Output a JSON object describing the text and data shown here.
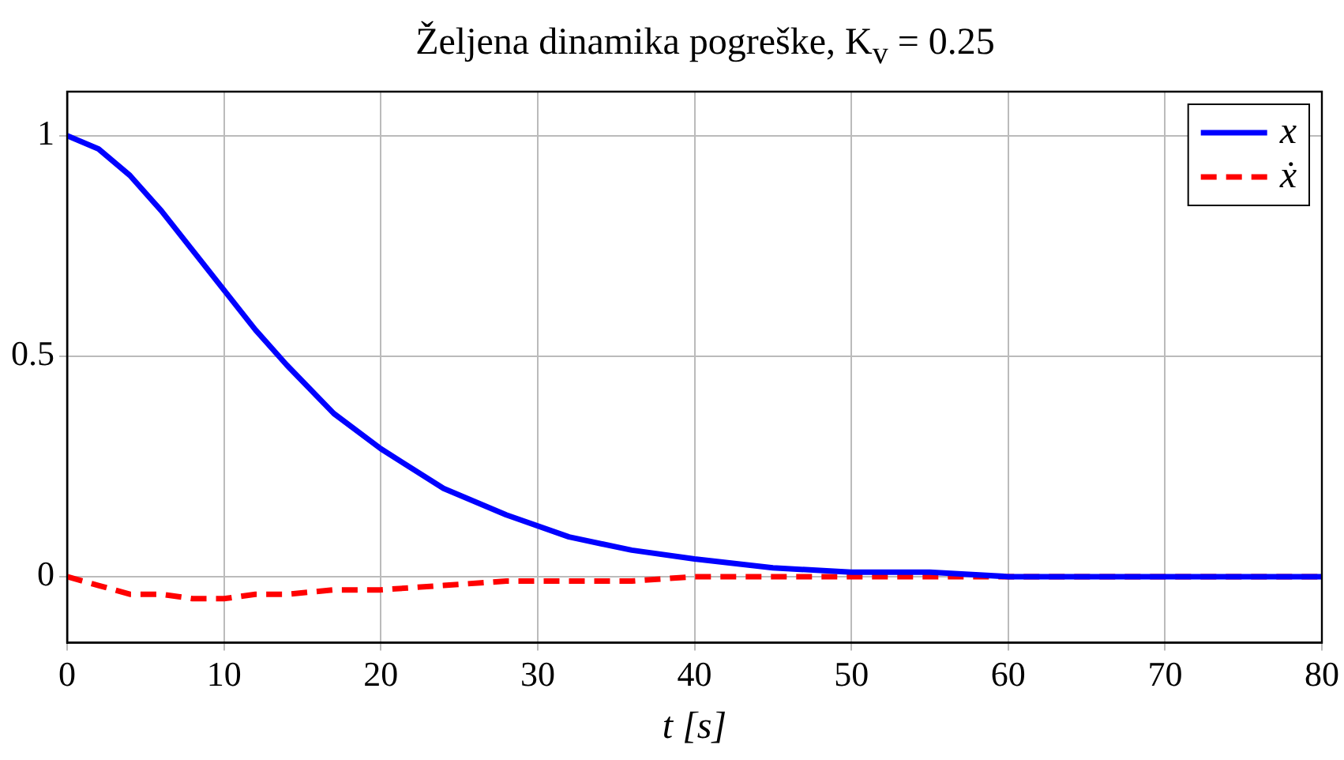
{
  "chart_data": {
    "type": "line",
    "title": "Željena dinamika pogreške, K$_{v}$ = 0.25",
    "xlabel": "t [s]",
    "x": [
      0,
      2,
      4,
      6,
      8,
      10,
      12,
      14,
      17,
      20,
      24,
      28,
      32,
      36,
      40,
      45,
      50,
      55,
      60,
      70,
      80
    ],
    "series": [
      {
        "name": "x",
        "color": "#0000ff",
        "line_style": "solid",
        "values": [
          1,
          0.97,
          0.91,
          0.83,
          0.74,
          0.65,
          0.56,
          0.48,
          0.37,
          0.29,
          0.2,
          0.14,
          0.09,
          0.06,
          0.04,
          0.02,
          0.01,
          0.01,
          0,
          0,
          0
        ]
      },
      {
        "name": "ẋ",
        "color": "#ff0000",
        "line_style": "dashed",
        "values": [
          0,
          -0.02,
          -0.04,
          -0.04,
          -0.05,
          -0.05,
          -0.04,
          -0.04,
          -0.03,
          -0.03,
          -0.02,
          -0.01,
          -0.01,
          -0.01,
          0,
          0,
          0,
          0,
          0,
          0,
          0
        ]
      }
    ],
    "xlim": [
      0,
      80
    ],
    "xticks": [
      0,
      10,
      20,
      30,
      40,
      50,
      60,
      70,
      80
    ],
    "ylim": [
      -0.15,
      1.1
    ],
    "yticks": [
      0,
      0.5,
      1
    ],
    "grid": true,
    "legend": "top right",
    "marker": "none"
  }
}
